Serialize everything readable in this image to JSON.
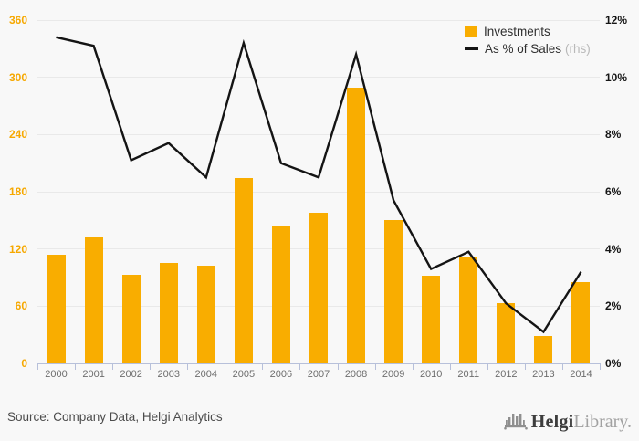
{
  "page": {
    "background": "#f8f8f8"
  },
  "legend": {
    "investments_label": "Investments",
    "sales_label": "As % of Sales",
    "sales_suffix": "(rhs)"
  },
  "chart_data": {
    "type": "bar+line",
    "categories": [
      "2000",
      "2001",
      "2002",
      "2003",
      "2004",
      "2005",
      "2006",
      "2007",
      "2008",
      "2009",
      "2010",
      "2011",
      "2012",
      "2013",
      "2014"
    ],
    "series": [
      {
        "name": "Investments",
        "type": "bar",
        "axis": "left",
        "color": "#F9AD00",
        "values": [
          114,
          132,
          93,
          105,
          102,
          194,
          144,
          158,
          289,
          150,
          92,
          111,
          63,
          29,
          85
        ]
      },
      {
        "name": "As % of Sales (rhs)",
        "type": "line",
        "axis": "right",
        "color": "#141414",
        "values": [
          11.4,
          11.1,
          7.1,
          7.7,
          6.5,
          11.2,
          7.0,
          6.5,
          10.8,
          5.7,
          3.3,
          3.9,
          2.1,
          1.1,
          3.2
        ]
      }
    ],
    "left_axis": {
      "ticks": [
        0,
        60,
        120,
        180,
        240,
        300,
        360
      ],
      "range": [
        0,
        360
      ],
      "color": "#F6A800"
    },
    "right_axis": {
      "tick_labels": [
        "0%",
        "2%",
        "4%",
        "6%",
        "8%",
        "10%",
        "12%"
      ],
      "range": [
        0,
        12
      ],
      "color": "#161616"
    },
    "grid": true,
    "legend_position": "top-right",
    "title": "",
    "xlabel": "",
    "ylabel": ""
  },
  "footer": {
    "source": "Source: Company Data, Helgi Analytics",
    "brand_primary": "Helgi",
    "brand_secondary": "Library."
  }
}
